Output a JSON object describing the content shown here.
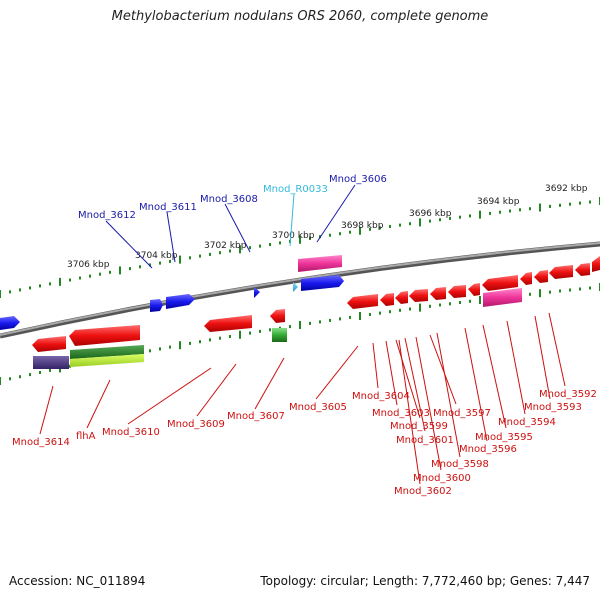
{
  "title": "Methylobacterium nodulans ORS 2060, complete genome",
  "footer": {
    "accession": "Accession: NC_011894",
    "summary": "Topology: circular; Length: 7,772,460 bp; Genes: 7,447"
  },
  "colors": {
    "backbone": "#888888",
    "forward_label": "#1a1aaa",
    "rna_label": "#33bbdd",
    "reverse_label": "#cc1111",
    "ticks": "#228822",
    "cds": "#ee1111",
    "blue": "#1a1aee",
    "magenta": "#ee3399",
    "green": "#33aa33",
    "purple": "#553388"
  },
  "ticks": [
    "3692 kbp",
    "3694 kbp",
    "3696 kbp",
    "3698 kbp",
    "3700 kbp",
    "3702 kbp",
    "3704 kbp",
    "3706 kbp"
  ],
  "forward_labels": [
    "Mnod_3612",
    "Mnod_3611",
    "Mnod_3608",
    "Mnod_3606"
  ],
  "rna_labels": [
    "Mnod_R0033"
  ],
  "reverse_labels": [
    "Mnod_3614",
    "flhA",
    "Mnod_3610",
    "Mnod_3609",
    "Mnod_3607",
    "Mnod_3605",
    "Mnod_3604",
    "Mnod_3603",
    "Mnod_3599",
    "Mnod_3601",
    "Mnod_3597",
    "Mnod_3600",
    "Mnod_3598",
    "Mnod_3602",
    "Mnod_3596",
    "Mnod_3595",
    "Mnod_3594",
    "Mnod_3593",
    "Mnod_3592"
  ]
}
